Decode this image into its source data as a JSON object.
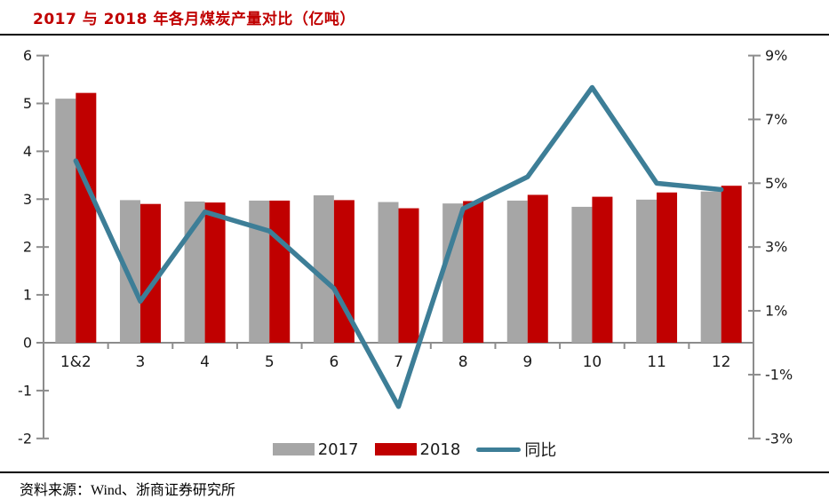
{
  "header": {
    "title": "2017 与 2018 年各月煤炭产量对比（亿吨）"
  },
  "footer": {
    "source": "资料来源：Wind、浙商证券研究所"
  },
  "colors": {
    "title": "#C00000",
    "axis": "#8C8C8C",
    "label": "#1a1a1a",
    "divider": "#000000"
  },
  "chart_data": {
    "type": "combo-bar-line",
    "title": "2017 与 2018 年各月煤炭产量对比（亿吨）",
    "categories": [
      "1&2",
      "3",
      "4",
      "5",
      "6",
      "7",
      "8",
      "9",
      "10",
      "11",
      "12"
    ],
    "series": [
      {
        "name": "2017",
        "type": "bar",
        "axis": "left",
        "color": "#A6A6A6",
        "values": [
          5.1,
          2.98,
          2.95,
          2.97,
          3.08,
          2.94,
          2.91,
          2.97,
          2.84,
          2.99,
          3.16
        ]
      },
      {
        "name": "2018",
        "type": "bar",
        "axis": "left",
        "color": "#C00000",
        "values": [
          5.22,
          2.9,
          2.93,
          2.97,
          2.98,
          2.81,
          2.96,
          3.09,
          3.05,
          3.14,
          3.28
        ]
      },
      {
        "name": "同比",
        "type": "line",
        "axis": "right",
        "color": "#3D7E97",
        "unit": "%",
        "values": [
          5.7,
          1.3,
          4.1,
          3.5,
          1.7,
          -2.0,
          4.2,
          5.2,
          8.0,
          5.0,
          4.8
        ]
      }
    ],
    "left_axis": {
      "min": -2,
      "max": 6,
      "tick_step": 1,
      "ticks": [
        6,
        5,
        4,
        3,
        2,
        1,
        0,
        -1,
        -2
      ]
    },
    "right_axis": {
      "min": -3,
      "max": 9,
      "tick_step": 2,
      "ticks": [
        9,
        7,
        5,
        3,
        1,
        -1,
        -3
      ],
      "format": "percent"
    },
    "grid": false,
    "legend_position": "bottom"
  }
}
